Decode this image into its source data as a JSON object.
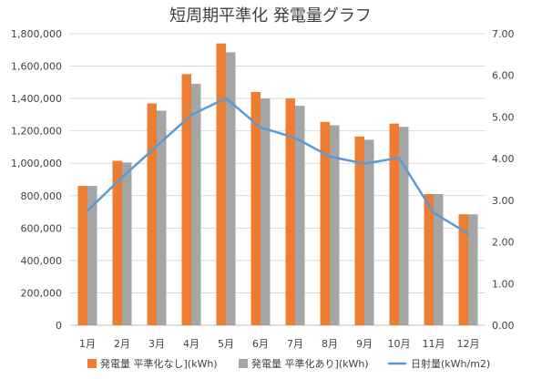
{
  "chart_data": {
    "type": "bar",
    "title": "短周期平準化 発電量グラフ",
    "categories": [
      "1月",
      "2月",
      "3月",
      "4月",
      "5月",
      "6月",
      "7月",
      "8月",
      "9月",
      "10月",
      "11月",
      "12月"
    ],
    "series": [
      {
        "name": "発電量 平準化なし](kWh)",
        "type": "bar",
        "axis": "left",
        "color": "#ED7D31",
        "values": [
          860000,
          1015000,
          1370000,
          1550000,
          1740000,
          1440000,
          1400000,
          1255000,
          1165000,
          1245000,
          810000,
          685000
        ]
      },
      {
        "name": "発電量 平準化あり](kWh)",
        "type": "bar",
        "axis": "left",
        "color": "#A5A5A5",
        "values": [
          860000,
          1005000,
          1325000,
          1490000,
          1685000,
          1400000,
          1355000,
          1235000,
          1145000,
          1225000,
          810000,
          685000
        ]
      },
      {
        "name": "日射量(kWh/m2)",
        "type": "line",
        "axis": "right",
        "color": "#5B9BD5",
        "values": [
          2.75,
          3.55,
          4.3,
          5.05,
          5.45,
          4.75,
          4.5,
          4.05,
          3.88,
          4.02,
          2.7,
          2.2
        ]
      }
    ],
    "y_left": {
      "ylim": [
        0,
        1800000
      ],
      "ticks": [
        0,
        200000,
        400000,
        600000,
        800000,
        1000000,
        1200000,
        1400000,
        1600000,
        1800000
      ],
      "tick_labels": [
        "0",
        "200,000",
        "400,000",
        "600,000",
        "800,000",
        "1,000,000",
        "1,200,000",
        "1,400,000",
        "1,600,000",
        "1,800,000"
      ]
    },
    "y_right": {
      "ylim": [
        0,
        7
      ],
      "ticks": [
        0,
        1,
        2,
        3,
        4,
        5,
        6,
        7
      ],
      "tick_labels": [
        "0.00",
        "1.00",
        "2.00",
        "3.00",
        "4.00",
        "5.00",
        "6.00",
        "7.00"
      ]
    },
    "grid": true,
    "legend_position": "bottom"
  }
}
